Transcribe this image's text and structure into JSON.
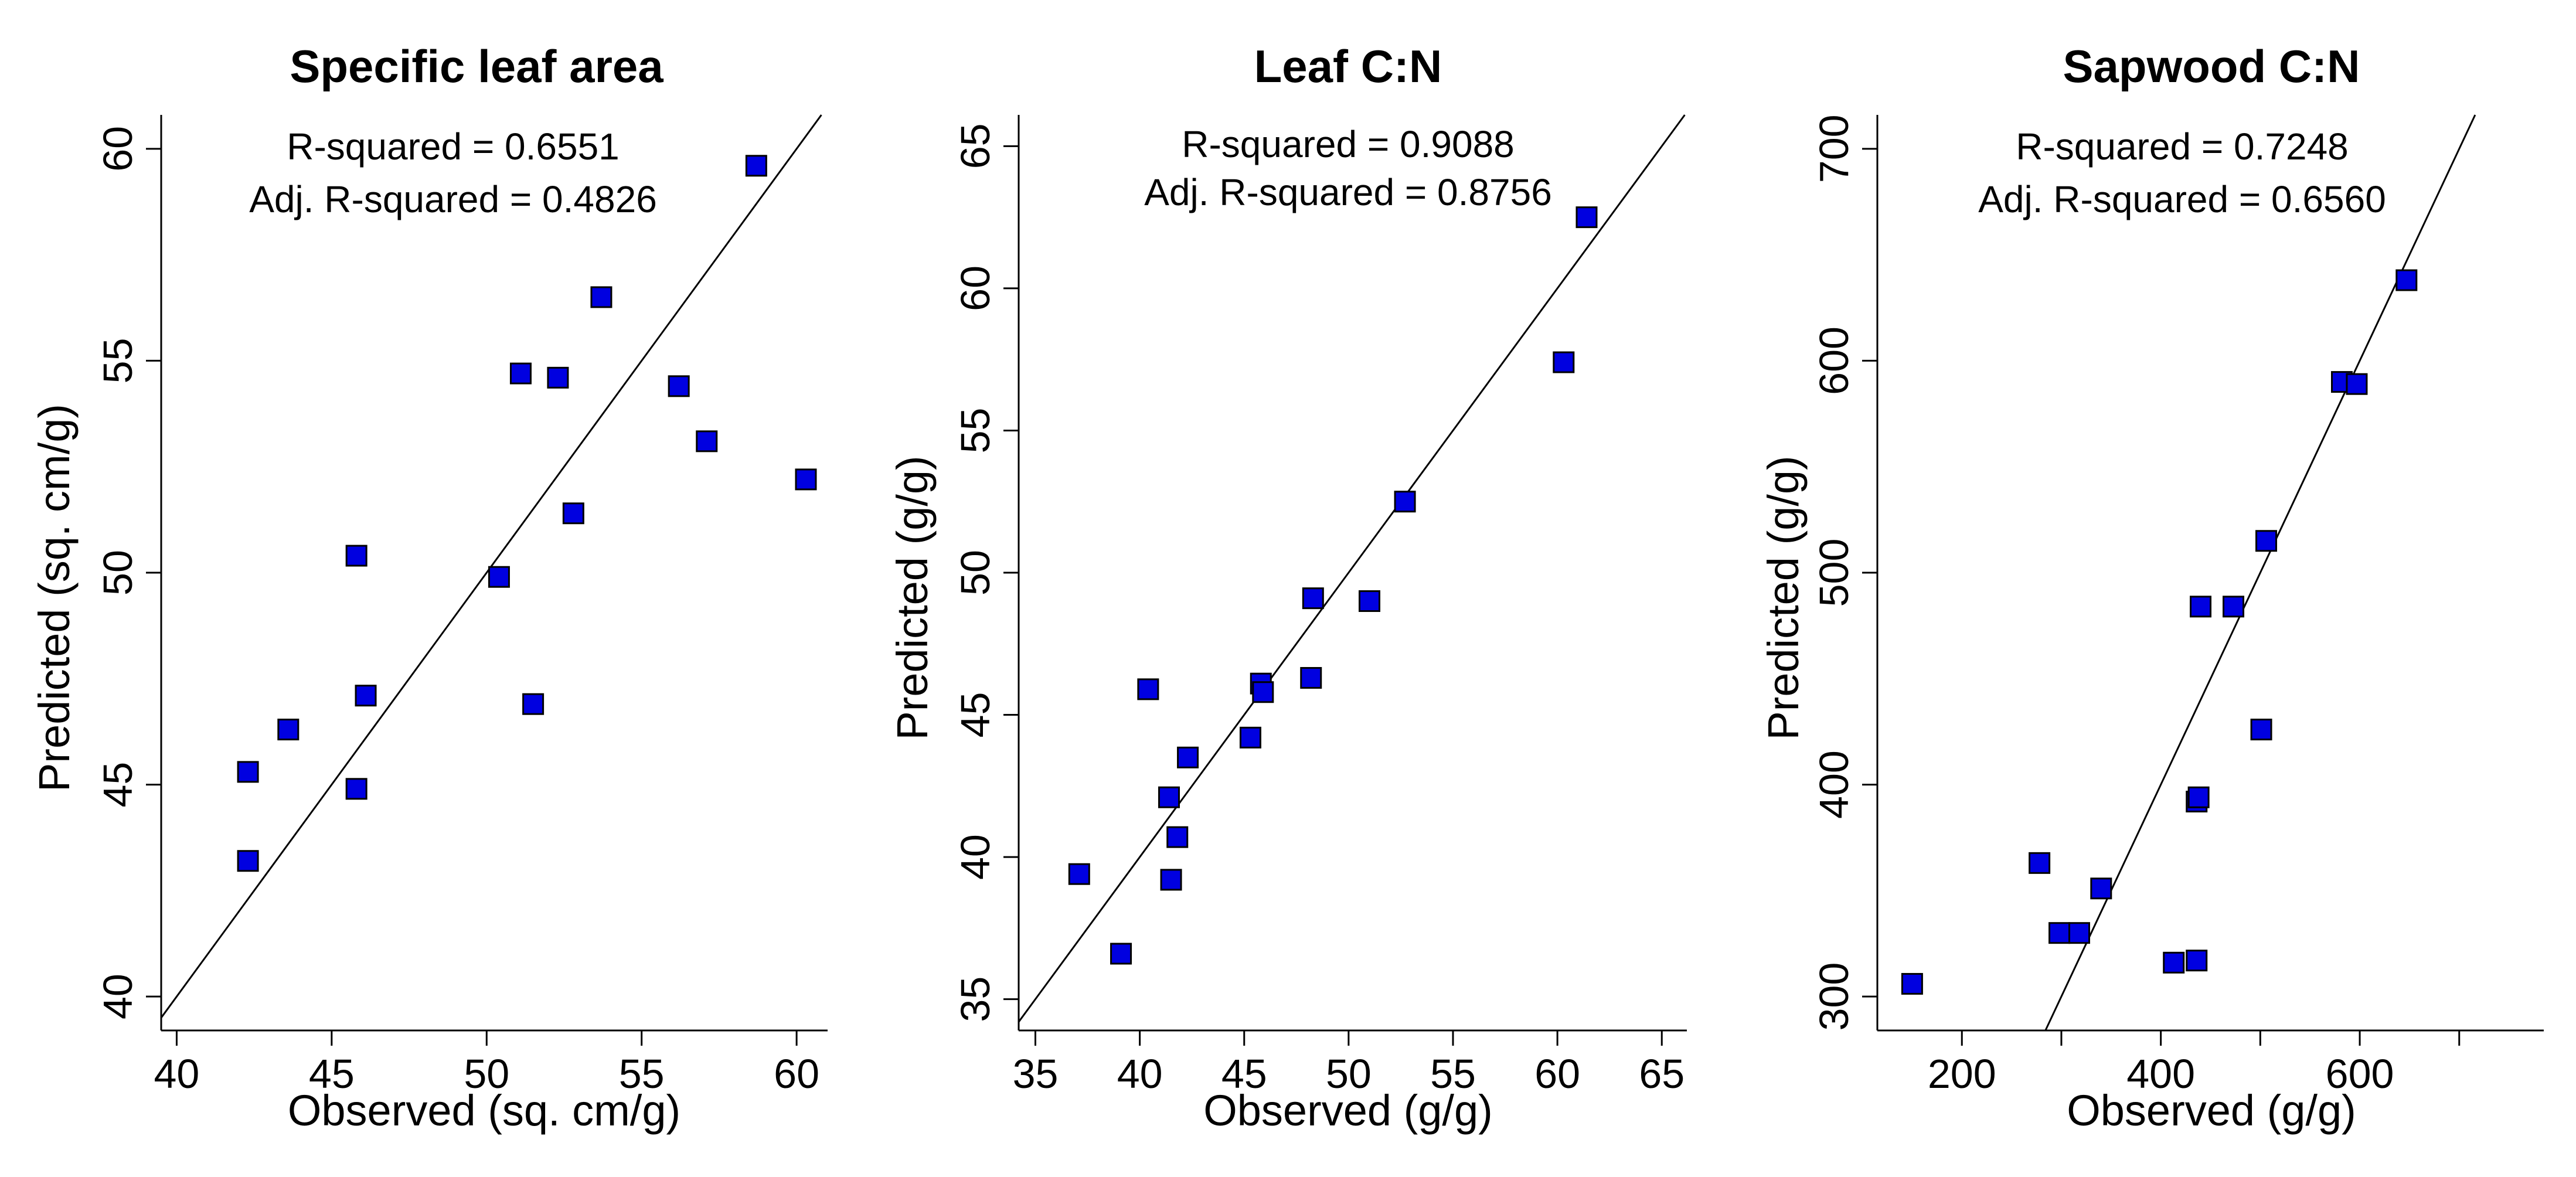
{
  "chart_data": [
    {
      "type": "scatter",
      "title": "Specific leaf area",
      "xlabel": "Observed (sq. cm/g)",
      "ylabel": "Predicted (sq. cm/g)",
      "xlim": [
        39.5,
        61
      ],
      "ylim": [
        39.2,
        60.8
      ],
      "xticks": [
        40,
        45,
        50,
        55,
        60
      ],
      "yticks": [
        40,
        45,
        50,
        55,
        60
      ],
      "xtick_labels": [
        "40",
        "45",
        "50",
        "55",
        "60"
      ],
      "ytick_labels": [
        "40",
        "45",
        "50",
        "55",
        "60"
      ],
      "annotations": [
        "R-squared = 0.6551",
        "Adj. R-squared = 0.4826"
      ],
      "reference_line": "y = x",
      "marker_color": "#0000e0",
      "points": [
        {
          "x": 42.3,
          "y": 45.3
        },
        {
          "x": 42.3,
          "y": 43.2
        },
        {
          "x": 43.6,
          "y": 46.3
        },
        {
          "x": 45.8,
          "y": 50.4
        },
        {
          "x": 45.8,
          "y": 44.9
        },
        {
          "x": 46.1,
          "y": 47.1
        },
        {
          "x": 50.4,
          "y": 49.9
        },
        {
          "x": 51.1,
          "y": 54.7
        },
        {
          "x": 51.5,
          "y": 46.9
        },
        {
          "x": 52.3,
          "y": 54.6
        },
        {
          "x": 52.8,
          "y": 51.4
        },
        {
          "x": 53.7,
          "y": 56.5
        },
        {
          "x": 56.2,
          "y": 54.4
        },
        {
          "x": 57.1,
          "y": 53.1
        },
        {
          "x": 58.7,
          "y": 59.6
        },
        {
          "x": 60.3,
          "y": 52.2
        }
      ]
    },
    {
      "type": "scatter",
      "title": "Leaf C:N",
      "xlabel": "Observed (g/g)",
      "ylabel": "Predicted (g/g)",
      "xlim": [
        34.2,
        66.2
      ],
      "ylim": [
        33.9,
        66.1
      ],
      "xticks": [
        35,
        40,
        45,
        50,
        55,
        60,
        65
      ],
      "yticks": [
        35,
        40,
        45,
        50,
        55,
        60,
        65
      ],
      "xtick_labels": [
        "35",
        "40",
        "45",
        "50",
        "55",
        "60",
        "65"
      ],
      "ytick_labels": [
        "35",
        "40",
        "45",
        "50",
        "55",
        "60",
        "65"
      ],
      "annotations": [
        "R-squared = 0.9088",
        "Adj. R-squared = 0.8756"
      ],
      "reference_line": "y = x",
      "marker_color": "#0000e0",
      "points": [
        {
          "x": 37.1,
          "y": 39.4
        },
        {
          "x": 39.1,
          "y": 36.6
        },
        {
          "x": 40.4,
          "y": 45.9
        },
        {
          "x": 41.4,
          "y": 42.1
        },
        {
          "x": 41.5,
          "y": 39.2
        },
        {
          "x": 41.8,
          "y": 40.7
        },
        {
          "x": 42.3,
          "y": 43.5
        },
        {
          "x": 45.3,
          "y": 44.2
        },
        {
          "x": 45.8,
          "y": 46.1
        },
        {
          "x": 45.9,
          "y": 45.8
        },
        {
          "x": 48.2,
          "y": 46.3
        },
        {
          "x": 48.3,
          "y": 49.1
        },
        {
          "x": 51.0,
          "y": 49.0
        },
        {
          "x": 52.7,
          "y": 52.5
        },
        {
          "x": 60.3,
          "y": 57.4
        },
        {
          "x": 61.4,
          "y": 62.5
        }
      ]
    },
    {
      "type": "scatter",
      "title": "Sapwood C:N",
      "xlabel": "Observed (g/g)",
      "ylabel": "Predicted (g/g)",
      "xlim": [
        115,
        785
      ],
      "ylim": [
        284,
        716
      ],
      "xticks": [
        200,
        300,
        400,
        500,
        600,
        700
      ],
      "yticks": [
        300,
        400,
        500,
        600,
        700
      ],
      "xtick_labels": [
        "200",
        "",
        "400",
        "",
        "600",
        ""
      ],
      "ytick_labels": [
        "300",
        "400",
        "500",
        "600",
        "700"
      ],
      "annotations": [
        "R-squared = 0.7248",
        "Adj. R-squared = 0.6560"
      ],
      "reference_line": "y = x",
      "marker_color": "#0000e0",
      "points": [
        {
          "x": 150,
          "y": 306
        },
        {
          "x": 278,
          "y": 363
        },
        {
          "x": 298,
          "y": 330
        },
        {
          "x": 318,
          "y": 330
        },
        {
          "x": 340,
          "y": 351
        },
        {
          "x": 413,
          "y": 316
        },
        {
          "x": 436,
          "y": 317
        },
        {
          "x": 436,
          "y": 392
        },
        {
          "x": 438,
          "y": 394
        },
        {
          "x": 440,
          "y": 484
        },
        {
          "x": 473,
          "y": 484
        },
        {
          "x": 501,
          "y": 426
        },
        {
          "x": 506,
          "y": 515
        },
        {
          "x": 582,
          "y": 590
        },
        {
          "x": 597,
          "y": 589
        },
        {
          "x": 647,
          "y": 638
        }
      ]
    }
  ]
}
